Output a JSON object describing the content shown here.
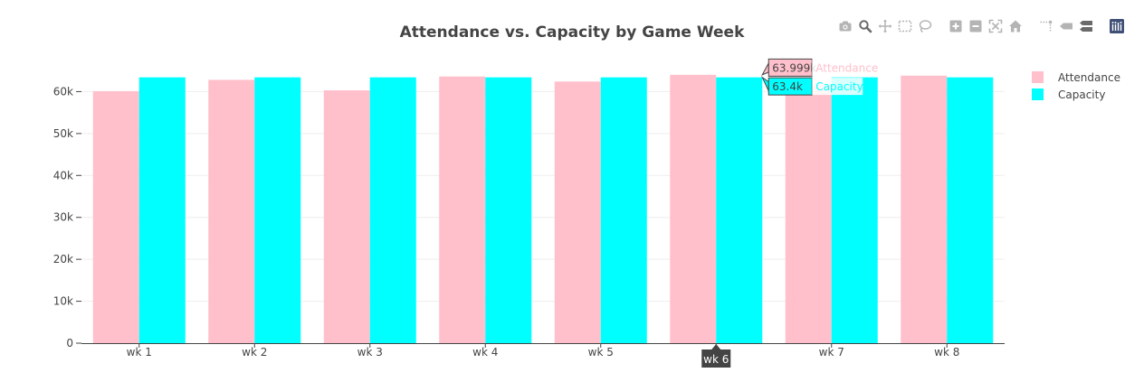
{
  "chart_data": {
    "type": "bar",
    "title": "Attendance vs. Capacity by Game Week",
    "categories": [
      "wk 1",
      "wk 2",
      "wk 3",
      "wk 4",
      "wk 5",
      "wk 6",
      "wk 7",
      "wk 8"
    ],
    "series": [
      {
        "name": "Attendance",
        "color": "#ffc0cb",
        "values": [
          60100,
          62800,
          60300,
          63600,
          62400,
          63999,
          61500,
          63800
        ]
      },
      {
        "name": "Capacity",
        "color": "#00ffff",
        "values": [
          63400,
          63400,
          63400,
          63400,
          63400,
          63400,
          63400,
          63400
        ]
      }
    ],
    "ylim": [
      0,
      70000
    ],
    "yticks": [
      0,
      10000,
      20000,
      30000,
      40000,
      50000,
      60000
    ],
    "ytick_labels": [
      "0",
      "10k",
      "20k",
      "30k",
      "40k",
      "50k",
      "60k"
    ],
    "grid": true,
    "legend_position": "top-right",
    "hover": {
      "category_label": "wk 6",
      "values": [
        {
          "label": "63.999k",
          "series": "Attendance"
        },
        {
          "label": "63.4k",
          "series": "Capacity"
        }
      ]
    }
  },
  "modebar": {
    "icons": [
      "camera-icon",
      "zoom-icon",
      "pan-icon",
      "box-select-icon",
      "lasso-select-icon",
      "zoom-in-icon",
      "zoom-out-icon",
      "autoscale-icon",
      "reset-axes-icon",
      "spike-lines-icon",
      "hover-closest-icon",
      "hover-compare-icon",
      "plotly-logo-icon"
    ],
    "color": "#b4b4b4",
    "active_color": "#6a6a6a",
    "logo_color": "#3f4f75"
  },
  "colors": {
    "text": "#444444",
    "title": "#444444",
    "grid": "#eeeeee",
    "hover_category_bg": "#444444"
  }
}
